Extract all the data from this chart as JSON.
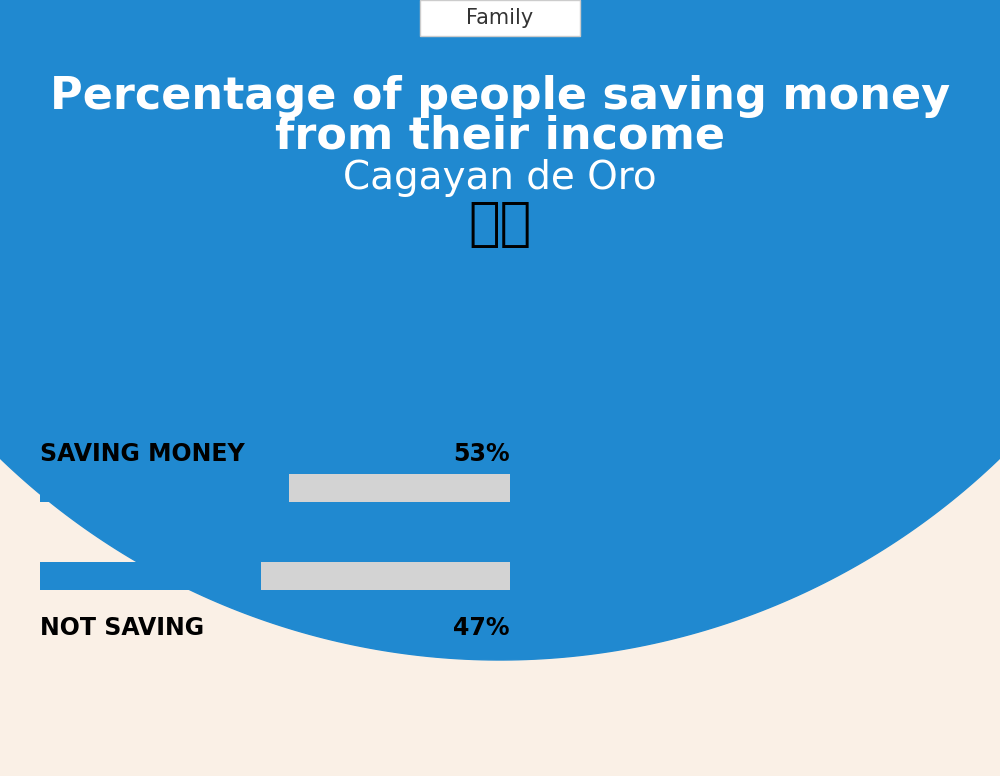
{
  "title_line1": "Percentage of people saving money",
  "title_line2": "from their income",
  "subtitle": "Cagayan de Oro",
  "category_label": "Family",
  "bg_top_color": "#2089D0",
  "bg_bottom_color": "#FAF0E6",
  "title_color": "#FFFFFF",
  "subtitle_color": "#FFFFFF",
  "bar1_label": "SAVING MONEY",
  "bar1_value": 53,
  "bar1_pct": "53%",
  "bar2_label": "NOT SAVING",
  "bar2_value": 47,
  "bar2_pct": "47%",
  "bar_fill_color": "#2089D0",
  "bar_bg_color": "#D3D3D3",
  "label_color": "#000000",
  "pct_color": "#000000",
  "family_box_color": "#FFFFFF",
  "family_text_color": "#333333"
}
